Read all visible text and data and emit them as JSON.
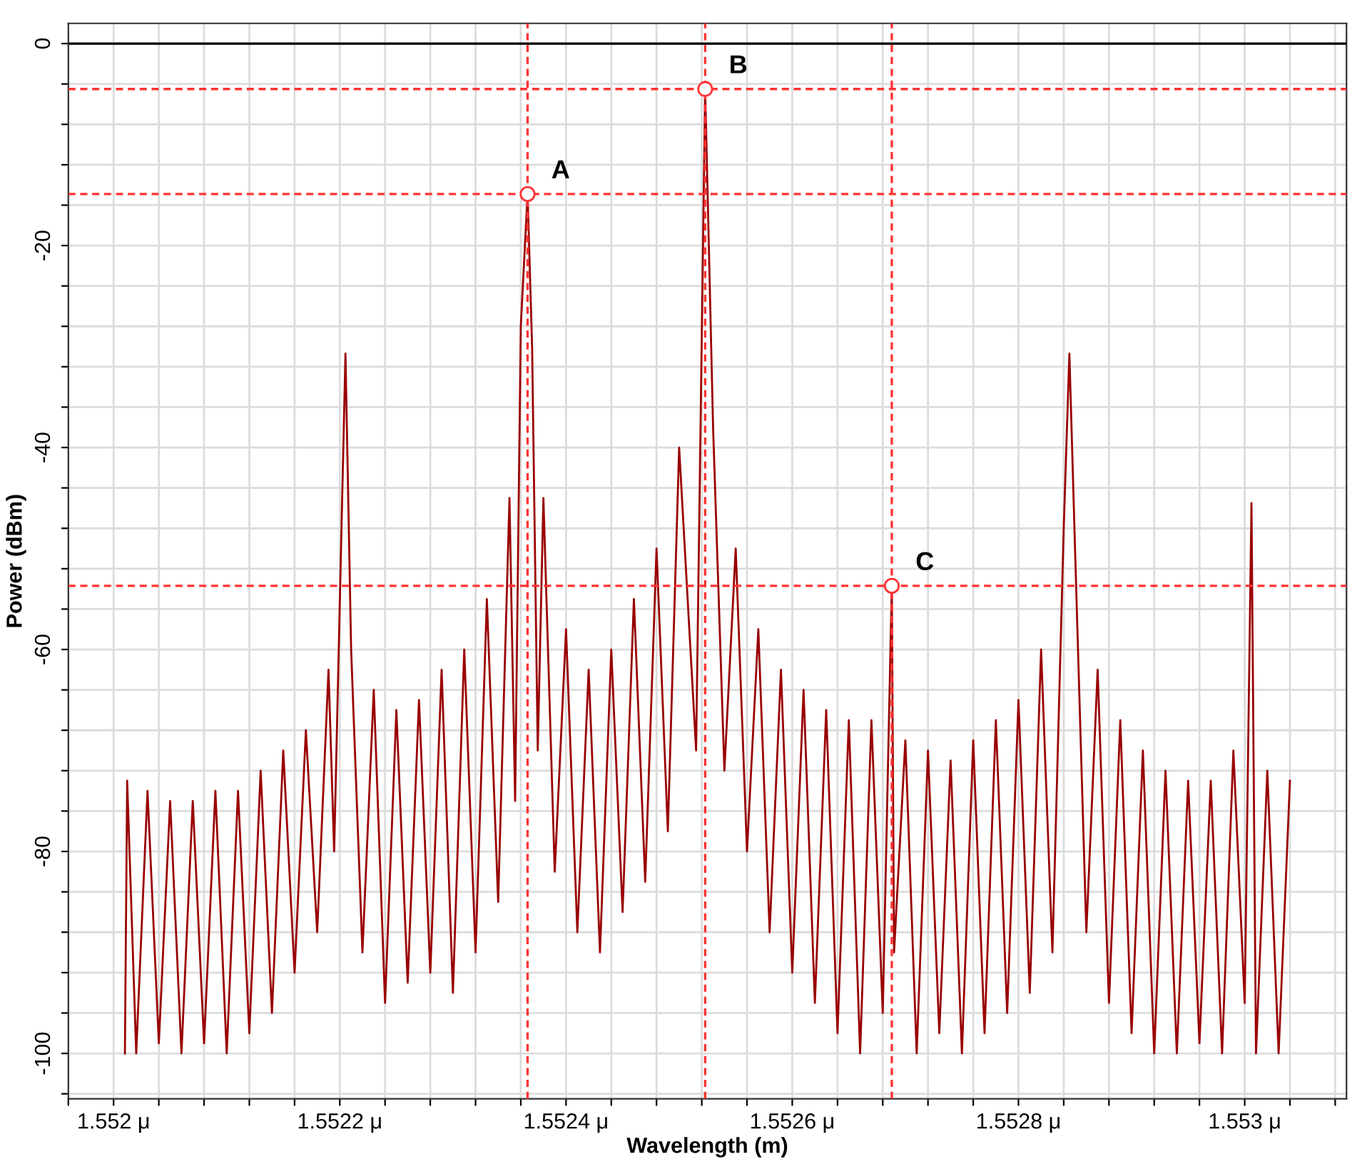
{
  "chart_data": {
    "type": "line",
    "xlabel": "Wavelength (m)",
    "ylabel": "Power (dBm)",
    "xlim": [
      1.55196,
      1.55309
    ],
    "ylim": [
      -104.5,
      2
    ],
    "xticks": [
      {
        "value": 1.55196,
        "label": null
      },
      {
        "value": 1.552,
        "label": "1.552 μ"
      },
      {
        "value": 1.55204,
        "label": null
      },
      {
        "value": 1.55208,
        "label": null
      },
      {
        "value": 1.55212,
        "label": null
      },
      {
        "value": 1.55216,
        "label": null
      },
      {
        "value": 1.5522,
        "label": "1.5522 μ"
      },
      {
        "value": 1.55224,
        "label": null
      },
      {
        "value": 1.55228,
        "label": null
      },
      {
        "value": 1.55232,
        "label": null
      },
      {
        "value": 1.55236,
        "label": null
      },
      {
        "value": 1.5524,
        "label": "1.5524 μ"
      },
      {
        "value": 1.55244,
        "label": null
      },
      {
        "value": 1.55248,
        "label": null
      },
      {
        "value": 1.55252,
        "label": null
      },
      {
        "value": 1.55256,
        "label": null
      },
      {
        "value": 1.5526,
        "label": "1.5526 μ"
      },
      {
        "value": 1.55264,
        "label": null
      },
      {
        "value": 1.55268,
        "label": null
      },
      {
        "value": 1.55272,
        "label": null
      },
      {
        "value": 1.55276,
        "label": null
      },
      {
        "value": 1.5528,
        "label": "1.5528 μ"
      },
      {
        "value": 1.55284,
        "label": null
      },
      {
        "value": 1.55288,
        "label": null
      },
      {
        "value": 1.55292,
        "label": null
      },
      {
        "value": 1.55296,
        "label": null
      },
      {
        "value": 1.553,
        "label": "1.553 μ"
      },
      {
        "value": 1.55304,
        "label": null
      },
      {
        "value": 1.55308,
        "label": null
      }
    ],
    "yticks": [
      0,
      {
        "value": -4,
        "label": null
      },
      {
        "value": -8,
        "label": null
      },
      {
        "value": -12,
        "label": null
      },
      {
        "value": -16,
        "label": null
      },
      -20,
      {
        "value": -24,
        "label": null
      },
      {
        "value": -28,
        "label": null
      },
      {
        "value": -32,
        "label": null
      },
      {
        "value": -36,
        "label": null
      },
      -40,
      {
        "value": -44,
        "label": null
      },
      {
        "value": -48,
        "label": null
      },
      {
        "value": -52,
        "label": null
      },
      {
        "value": -56,
        "label": null
      },
      -60,
      {
        "value": -64,
        "label": null
      },
      {
        "value": -68,
        "label": null
      },
      {
        "value": -72,
        "label": null
      },
      {
        "value": -76,
        "label": null
      },
      -80,
      {
        "value": -84,
        "label": null
      },
      {
        "value": -88,
        "label": null
      },
      {
        "value": -92,
        "label": null
      },
      {
        "value": -96,
        "label": null
      },
      -100,
      {
        "value": -104,
        "label": null
      }
    ],
    "grid": true,
    "line_style": "solid",
    "marker": "none",
    "series": [
      {
        "color": "#990000",
        "x": [
          1.55201,
          1.552012,
          1.55202,
          1.55203,
          1.55204,
          1.55205,
          1.55206,
          1.55207,
          1.55208,
          1.55209,
          1.5521,
          1.55211,
          1.55212,
          1.55213,
          1.55214,
          1.55215,
          1.55216,
          1.55217,
          1.55218,
          1.55219,
          1.552195,
          1.552205,
          1.55221,
          1.55222,
          1.55223,
          1.55224,
          1.55225,
          1.55226,
          1.55227,
          1.55228,
          1.55229,
          1.5523,
          1.55231,
          1.55232,
          1.55233,
          1.55234,
          1.55235,
          1.552355,
          1.55236,
          1.552366,
          1.55237,
          1.552375,
          1.55238,
          1.55239,
          1.5524,
          1.55241,
          1.55242,
          1.55243,
          1.55244,
          1.55245,
          1.55246,
          1.55247,
          1.55248,
          1.55249,
          1.5525,
          1.552515,
          1.552523,
          1.55253,
          1.55254,
          1.55255,
          1.55256,
          1.55257,
          1.55258,
          1.55259,
          1.5526,
          1.55261,
          1.55262,
          1.55263,
          1.55264,
          1.55265,
          1.55266,
          1.55267,
          1.55268,
          1.552688,
          1.55269,
          1.5527,
          1.55271,
          1.55272,
          1.55273,
          1.55274,
          1.55275,
          1.55276,
          1.55277,
          1.55278,
          1.55279,
          1.5528,
          1.55281,
          1.55282,
          1.55283,
          1.55284,
          1.552845,
          1.55285,
          1.55286,
          1.55287,
          1.55288,
          1.55289,
          1.5529,
          1.55291,
          1.55292,
          1.55293,
          1.55294,
          1.55295,
          1.55296,
          1.55297,
          1.55298,
          1.55299,
          1.553,
          1.553006,
          1.55301,
          1.55302,
          1.55303,
          1.55304
        ],
        "values": [
          -100,
          -73,
          -100,
          -74,
          -99,
          -75,
          -100,
          -75,
          -99,
          -74,
          -100,
          -74,
          -98,
          -72,
          -96,
          -70,
          -92,
          -68,
          -88,
          -62,
          -80,
          -30.7,
          -60,
          -90,
          -64,
          -95,
          -66,
          -93,
          -65,
          -92,
          -62,
          -94,
          -60,
          -90,
          -55,
          -85,
          -45,
          -75,
          -28,
          -14.9,
          -30,
          -70,
          -45,
          -82,
          -58,
          -88,
          -62,
          -90,
          -60,
          -86,
          -55,
          -83,
          -50,
          -78,
          -40,
          -70,
          -4.5,
          -38,
          -72,
          -50,
          -80,
          -58,
          -88,
          -62,
          -92,
          -64,
          -95,
          -66,
          -98,
          -67,
          -100,
          -67,
          -96,
          -53.7,
          -90,
          -69,
          -100,
          -70,
          -98,
          -71,
          -100,
          -69,
          -98,
          -67,
          -96,
          -65,
          -94,
          -60,
          -90,
          -48,
          -30.7,
          -50,
          -88,
          -62,
          -95,
          -67,
          -98,
          -70,
          -100,
          -72,
          -100,
          -73,
          -99,
          -73,
          -100,
          -70,
          -95,
          -45.5,
          -100,
          -72,
          -100,
          -73
        ]
      }
    ],
    "ref_lines": [
      {
        "axis": "y",
        "value": 0,
        "color": "#000000",
        "line_style": "solid"
      },
      {
        "axis": "x",
        "value": 1.552366,
        "color": "#ff3333",
        "line_style": "dashed"
      },
      {
        "axis": "x",
        "value": 1.552523,
        "color": "#ff3333",
        "line_style": "dashed"
      },
      {
        "axis": "x",
        "value": 1.552688,
        "color": "#ff3333",
        "line_style": "dashed"
      },
      {
        "axis": "y",
        "value": -14.9,
        "color": "#ff3333",
        "line_style": "dashed"
      },
      {
        "axis": "y",
        "value": -4.5,
        "color": "#ff3333",
        "line_style": "dashed"
      },
      {
        "axis": "y",
        "value": -53.7,
        "color": "#ff3333",
        "line_style": "dashed"
      }
    ],
    "annotations": [
      {
        "text": "A",
        "x": 1.552366,
        "y": -14.9
      },
      {
        "text": "B",
        "x": 1.552523,
        "y": -4.5
      },
      {
        "text": "C",
        "x": 1.552688,
        "y": -53.7
      }
    ]
  }
}
